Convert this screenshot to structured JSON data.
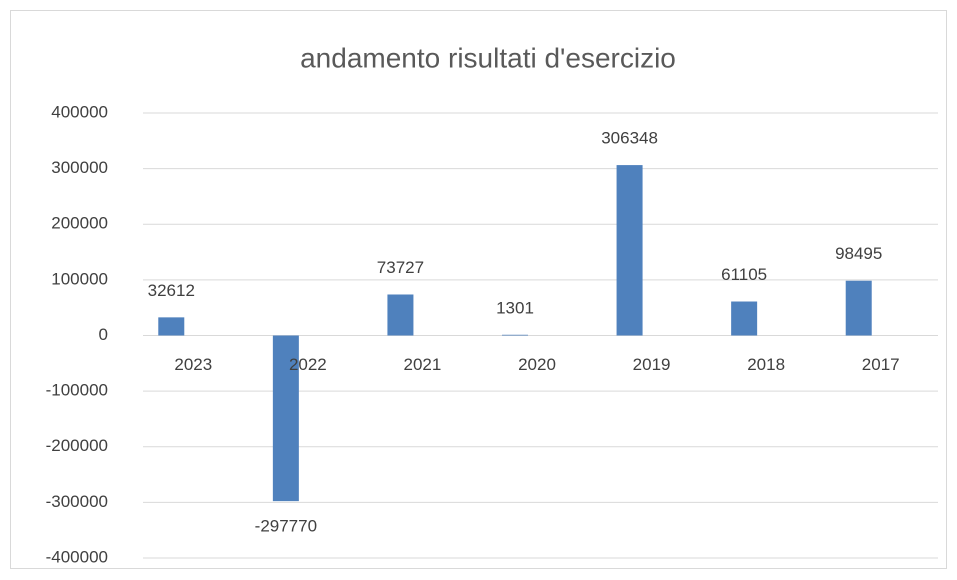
{
  "chart_data": {
    "type": "bar",
    "title": "andamento risultati d'esercizio",
    "categories": [
      "2023",
      "2022",
      "2021",
      "2020",
      "2019",
      "2018",
      "2017"
    ],
    "values": [
      32612,
      -297770,
      73727,
      1301,
      306348,
      61105,
      98495
    ],
    "color": "#4f81bd",
    "ylim": [
      -400000,
      400000
    ],
    "yticks": [
      -400000,
      -300000,
      -200000,
      -100000,
      0,
      100000,
      200000,
      300000,
      400000
    ],
    "grid": true,
    "data_labels": true
  }
}
